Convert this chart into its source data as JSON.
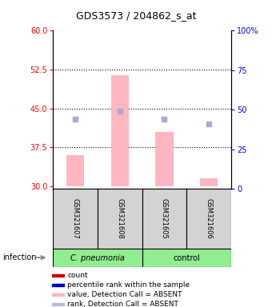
{
  "title": "GDS3573 / 204862_s_at",
  "samples": [
    "GSM321607",
    "GSM321608",
    "GSM321605",
    "GSM321606"
  ],
  "bar_values": [
    36.0,
    51.5,
    40.5,
    31.5
  ],
  "bar_base": 30,
  "bar_color": "#ffb6c1",
  "dot_values": [
    43.0,
    44.5,
    43.0,
    42.0
  ],
  "dot_color": "#aaaacc",
  "ylim_left": [
    29.5,
    60
  ],
  "ylim_right": [
    0,
    100
  ],
  "left_ticks": [
    30,
    37.5,
    45,
    52.5,
    60
  ],
  "right_ticks": [
    0,
    25,
    50,
    75,
    100
  ],
  "right_tick_labels": [
    "0",
    "25",
    "50",
    "75",
    "100%"
  ],
  "dotted_lines": [
    37.5,
    45.0,
    52.5
  ],
  "legend_colors": [
    "#cc0000",
    "#0000cc",
    "#ffb6c1",
    "#bbbbdd"
  ],
  "legend_labels": [
    "count",
    "percentile rank within the sample",
    "value, Detection Call = ABSENT",
    "rank, Detection Call = ABSENT"
  ]
}
